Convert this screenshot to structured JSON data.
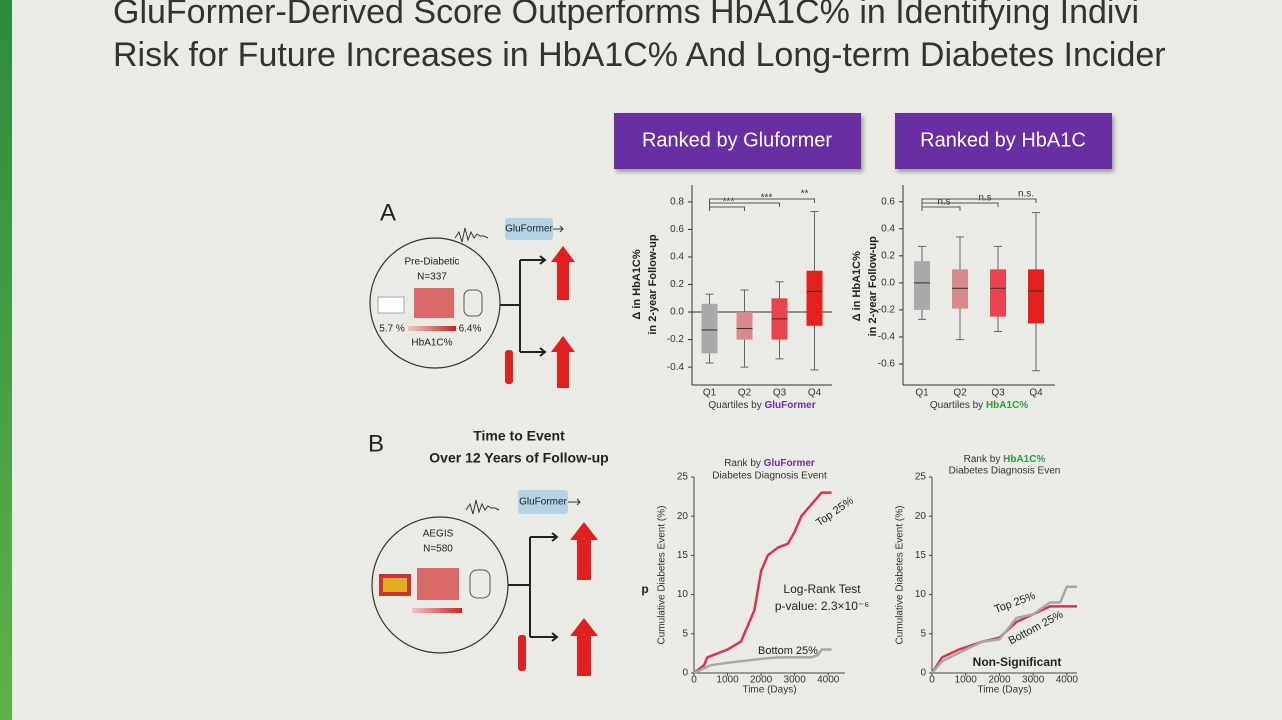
{
  "title_lines": [
    "GluFormer-Derived Score Outperforms HbA1C% in Identifying Indivi",
    "Risk for Future Increases in HbA1C% And Long-term Diabetes Incider"
  ],
  "buttons": [
    "Ranked by Gluformer",
    "Ranked by HbA1C"
  ],
  "panel_a": {
    "label": "A",
    "model_label": "GluFormer",
    "cohort": "Pre-Diabetic",
    "n": "N=337",
    "range_low": "5.7 %",
    "range_high": "6.4%",
    "range_name": "HbA1C%"
  },
  "panel_b": {
    "label": "B",
    "heading": [
      "Time to Event",
      "Over 12 Years of Follow-up"
    ],
    "model_label": "GluFormer",
    "cohort": "AEGIS",
    "n": "N=580"
  },
  "chart_data": [
    {
      "type": "box",
      "ylabel": [
        "Δ in HbA1C%",
        "in 2-year Follow-up"
      ],
      "xlabel": "Quartiles by",
      "xlabel_emphasis": "GluFormer",
      "categories": [
        "Q1",
        "Q2",
        "Q3",
        "Q4"
      ],
      "colors": [
        "#a9a9a9",
        "#d98a8f",
        "#e8434f",
        "#e3211f"
      ],
      "whisker_low": [
        -0.37,
        -0.4,
        -0.34,
        -0.42
      ],
      "q1": [
        -0.3,
        -0.2,
        -0.2,
        -0.1
      ],
      "median": [
        -0.13,
        -0.12,
        -0.05,
        0.15
      ],
      "q3": [
        0.06,
        0.0,
        0.1,
        0.3
      ],
      "whisker_high": [
        0.13,
        0.16,
        0.22,
        0.73
      ],
      "significance": [
        "***",
        "***",
        "**"
      ],
      "hline": 0,
      "ylim": [
        -0.45,
        0.85
      ],
      "yticks": [
        -0.4,
        -0.2,
        {
          "value": 0,
          "label": "0.0"
        },
        0.2,
        0.4,
        0.6,
        0.8
      ]
    },
    {
      "type": "box",
      "ylabel": [
        "Δ in HbA1C%",
        "in 2-year Follow-up"
      ],
      "xlabel": "Quartiles by",
      "xlabel_emphasis": "HbA1C%",
      "categories": [
        "Q1",
        "Q2",
        "Q3",
        "Q4"
      ],
      "colors": [
        "#a9a9a9",
        "#d98a8f",
        "#e8434f",
        "#e3211f"
      ],
      "whisker_low": [
        -0.27,
        -0.42,
        -0.36,
        -0.65
      ],
      "q1": [
        -0.2,
        -0.19,
        -0.25,
        -0.3
      ],
      "median": [
        0.0,
        -0.04,
        -0.04,
        -0.06
      ],
      "q3": [
        0.16,
        0.1,
        0.1,
        0.1
      ],
      "whisker_high": [
        0.27,
        0.34,
        0.27,
        0.52
      ],
      "significance": [
        "n.s",
        "n.s",
        "n.s."
      ],
      "ylim": [
        -0.7,
        0.65
      ],
      "yticks": [
        -0.6,
        -0.4,
        -0.2,
        {
          "value": 0,
          "label": "0.0"
        },
        0.2,
        0.4,
        0.6
      ]
    },
    {
      "type": "line",
      "title": "Rank by",
      "title_emphasis": "GluFormer",
      "subtitle": "Diabetes Diagnosis Event",
      "ylabel": "Cumulative Diabetes Event (%)",
      "xlabel": "Time (Days)",
      "series": [
        {
          "name": "Top 25%",
          "color": "#d9344f",
          "x": [
            0,
            300,
            400,
            700,
            1000,
            1400,
            1600,
            1800,
            2000,
            2200,
            2500,
            2800,
            3000,
            3200,
            3400,
            3600,
            3800,
            4100
          ],
          "values": [
            0,
            1,
            2,
            2.5,
            3,
            4,
            6,
            8,
            13,
            15,
            16,
            16.5,
            18,
            20,
            21,
            22,
            23,
            23
          ]
        },
        {
          "name": "Bottom 25%",
          "color": "#a8a8a8",
          "x": [
            0,
            500,
            1000,
            2000,
            2500,
            3000,
            3500,
            3700,
            3800,
            4000,
            4100
          ],
          "values": [
            0,
            1,
            1.3,
            1.8,
            2,
            2,
            2,
            2.3,
            3,
            3,
            3
          ]
        }
      ],
      "annotations": [
        "Log-Rank Test",
        "p-value: 2.3×10⁻⁶",
        "p"
      ],
      "xlim": [
        0,
        4500
      ],
      "xticks": [
        0,
        1000,
        2000,
        3000,
        4000
      ],
      "ylim": [
        0,
        25
      ],
      "yticks": [
        0,
        5,
        10,
        15,
        20,
        25
      ]
    },
    {
      "type": "line",
      "title": "Rank by",
      "title_emphasis": "HbA1C%",
      "subtitle": "Diabetes Diagnosis Even",
      "ylabel": "Cumulative Diabetes Event (%)",
      "xlabel": "Time (Days)",
      "series": [
        {
          "name": "Top 25%",
          "color": "#d9344f",
          "x": [
            0,
            300,
            800,
            1500,
            2000,
            2500,
            3000,
            3500,
            4000,
            4300
          ],
          "values": [
            0,
            2,
            3,
            4,
            4.5,
            6.5,
            7.5,
            8.5,
            8.5,
            8.5
          ]
        },
        {
          "name": "Bottom 25%",
          "color": "#a8a8a8",
          "x": [
            0,
            300,
            1000,
            1500,
            2000,
            2500,
            3000,
            3500,
            3800,
            4000,
            4300
          ],
          "values": [
            0,
            1.5,
            3,
            4,
            4.3,
            7,
            7.5,
            9,
            9,
            11,
            11
          ]
        }
      ],
      "annotations": [
        "Non-Significant"
      ],
      "xlim": [
        0,
        4300
      ],
      "xticks": [
        0,
        1000,
        2000,
        3000,
        4000
      ],
      "ylim": [
        0,
        25
      ],
      "yticks": [
        0,
        5,
        10,
        15,
        20,
        25
      ]
    }
  ]
}
